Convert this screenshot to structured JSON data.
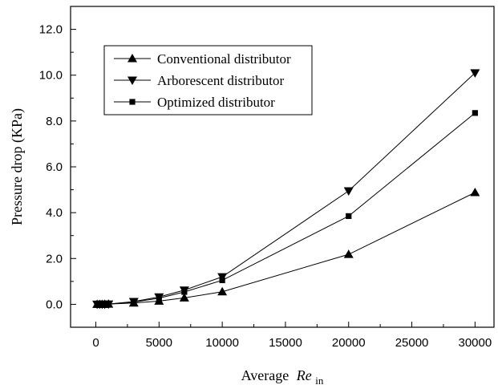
{
  "chart_data": {
    "type": "line",
    "title": "",
    "xlabel": "Average",
    "xlabel_italic": "Re",
    "xlabel_subscript": "in",
    "ylabel": "Pressure drop (KPa)",
    "xlim": [
      -2000,
      31500
    ],
    "ylim": [
      -1.0,
      13.0
    ],
    "xticks": [
      0,
      5000,
      10000,
      15000,
      20000,
      25000,
      30000
    ],
    "xtick_labels": [
      "0",
      "5000",
      "10000",
      "15000",
      "20000",
      "25000",
      "30000"
    ],
    "yticks": [
      0,
      2,
      4,
      6,
      8,
      10,
      12
    ],
    "ytick_labels": [
      "0.0",
      "2.0",
      "4.0",
      "6.0",
      "8.0",
      "10.0",
      "12.0"
    ],
    "grid": false,
    "legend_position": "top-left",
    "series": [
      {
        "name": "Conventional distributor",
        "marker": "triangle-up",
        "x": [
          100,
          300,
          500,
          700,
          1000,
          3000,
          5000,
          7000,
          10000,
          20000,
          30000
        ],
        "y": [
          0.0,
          0.0,
          0.0,
          0.0,
          0.01,
          0.06,
          0.14,
          0.28,
          0.55,
          2.18,
          4.88
        ]
      },
      {
        "name": "Arborescent distributor",
        "marker": "triangle-down",
        "x": [
          100,
          300,
          500,
          700,
          1000,
          3000,
          5000,
          7000,
          10000,
          20000,
          30000
        ],
        "y": [
          0.0,
          0.0,
          0.0,
          0.0,
          0.01,
          0.12,
          0.32,
          0.62,
          1.2,
          4.95,
          10.1
        ]
      },
      {
        "name": "Optimized distributor",
        "marker": "square",
        "x": [
          100,
          300,
          500,
          700,
          1000,
          3000,
          5000,
          7000,
          10000,
          20000,
          30000
        ],
        "y": [
          0.0,
          0.0,
          0.0,
          0.0,
          0.01,
          0.1,
          0.27,
          0.54,
          1.05,
          3.85,
          8.35
        ]
      }
    ]
  }
}
